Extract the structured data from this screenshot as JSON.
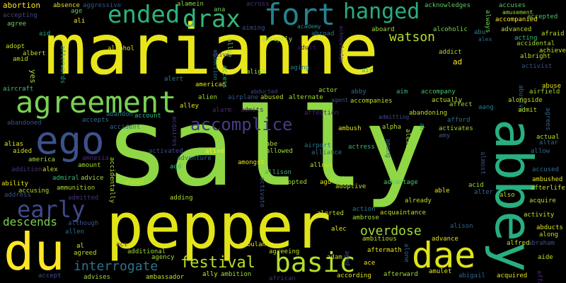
{
  "words": {
    "marianne": {
      "text": "marianne",
      "color": "#e8e61a"
    },
    "sally": {
      "text": "sally",
      "color": "#8fd744"
    },
    "pepper": {
      "text": "pepper",
      "color": "#e2e418"
    },
    "abbey": {
      "text": "abbey",
      "color": "#29af7f"
    },
    "du": {
      "text": "du",
      "color": "#fde725"
    },
    "dae": {
      "text": "dae",
      "color": "#dde318"
    },
    "agreement": {
      "text": "agreement",
      "color": "#7ad151"
    },
    "ego": {
      "text": "ego",
      "color": "#3b528b"
    },
    "ended": {
      "text": "ended",
      "color": "#2db27d"
    },
    "drax": {
      "text": "drax",
      "color": "#35b779"
    },
    "fort": {
      "text": "fort",
      "color": "#26828e"
    },
    "hanged": {
      "text": "hanged",
      "color": "#27ad81"
    },
    "basic": {
      "text": "basic",
      "color": "#b5de2b"
    },
    "early": {
      "text": "early",
      "color": "#3e4a89"
    },
    "accomplice": {
      "text": "accomplice",
      "color": "#433e85"
    },
    "festival": {
      "text": "festival",
      "color": "#b8de29"
    },
    "watson": {
      "text": "watson",
      "color": "#b5de2b"
    },
    "interrogate": {
      "text": "interrogate",
      "color": "#2c728e"
    },
    "overdose": {
      "text": "overdose",
      "color": "#a2da37"
    },
    "descends": {
      "text": "descends",
      "color": "#7ad151"
    },
    "abortion": {
      "text": "abortion",
      "color": "#fde725"
    },
    "accepting": {
      "text": "accepting",
      "color": "#404688"
    },
    "absence": {
      "text": "absence",
      "color": "#e5e419"
    },
    "aggressive": {
      "text": "aggressive",
      "color": "#39568c"
    },
    "alamein": {
      "text": "alamein",
      "color": "#8fd744"
    },
    "ana": {
      "text": "ana",
      "color": "#6ccd5a"
    },
    "across": {
      "text": "across",
      "color": "#46327e"
    },
    "acknowledges": {
      "text": "acknowledges",
      "color": "#5ec962"
    },
    "accuses": {
      "text": "accuses",
      "color": "#54c568"
    },
    "always": {
      "text": "always",
      "color": "#73d056"
    },
    "accepted": {
      "text": "accepted",
      "color": "#4ac16d"
    },
    "agree": {
      "text": "agree",
      "color": "#70cf57"
    },
    "age": {
      "text": "age",
      "color": "#5ec962"
    },
    "amusement": {
      "text": "amusement",
      "color": "#a0da39"
    },
    "ali": {
      "text": "ali",
      "color": "#fde725"
    },
    "aiming": {
      "text": "aiming",
      "color": "#3b528b"
    },
    "academy": {
      "text": "academy",
      "color": "#21918c"
    },
    "accompanied": {
      "text": "accompanied",
      "color": "#fde725"
    },
    "aid": {
      "text": "aid",
      "color": "#20a386"
    },
    "abroad": {
      "text": "abroad",
      "color": "#2a788e"
    },
    "aboard": {
      "text": "aboard",
      "color": "#a0da39"
    },
    "alcoholic": {
      "text": "alcoholic",
      "color": "#7fd34e"
    },
    "abu": {
      "text": "abu",
      "color": "#25858e"
    },
    "advanced": {
      "text": "advanced",
      "color": "#b5de2b"
    },
    "afraid": {
      "text": "afraid",
      "color": "#bddf26"
    },
    "acknowledge": {
      "text": "acknowledge",
      "color": "#46337f"
    },
    "acting": {
      "text": "acting",
      "color": "#37b878"
    },
    "alex_top": {
      "text": "alex",
      "color": "#31688e"
    },
    "accidental": {
      "text": "accidental",
      "color": "#a5db36"
    },
    "adopt": {
      "text": "adopt",
      "color": "#c2df23"
    },
    "allie": {
      "text": "allie",
      "color": "#7ad151"
    },
    "abruptly": {
      "text": "abruptly",
      "color": "#a8db34"
    },
    "adult": {
      "text": "adult",
      "color": "#471063"
    },
    "achieve": {
      "text": "achieve",
      "color": "#c8e020"
    },
    "albert": {
      "text": "albert",
      "color": "#c0df25"
    },
    "alcohol": {
      "text": "alcohol",
      "color": "#e7e419"
    },
    "addict": {
      "text": "addict",
      "color": "#addc30"
    },
    "amid": {
      "text": "amid",
      "color": "#c0df25"
    },
    "afterwards": {
      "text": "afterwards",
      "color": "#1fa088"
    },
    "abduction": {
      "text": "abduction",
      "color": "#2a768e"
    },
    "access": {
      "text": "access",
      "color": "#32b67a"
    },
    "alive_top": {
      "text": "alive",
      "color": "#482878"
    },
    "albright": {
      "text": "albright",
      "color": "#c2df23"
    },
    "ad": {
      "text": "ad",
      "color": "#fde725"
    },
    "align": {
      "text": "align",
      "color": "#a8db34"
    },
    "aging": {
      "text": "aging",
      "color": "#287c8e"
    },
    "air": {
      "text": "air",
      "color": "#38b977"
    },
    "activist": {
      "text": "activist",
      "color": "#3b528b"
    },
    "yes": {
      "text": "yes",
      "color": "#a8db34"
    },
    "alert": {
      "text": "alert",
      "color": "#25848e"
    },
    "american": {
      "text": "american",
      "color": "#e2e418"
    },
    "abuse": {
      "text": "abuse",
      "color": "#e7e419"
    },
    "aircraft": {
      "text": "aircraft",
      "color": "#48c16e"
    },
    "actor": {
      "text": "actor",
      "color": "#a0da39"
    },
    "abby": {
      "text": "abby",
      "color": "#2e6e8e"
    },
    "aim": {
      "text": "aim",
      "color": "#37b878"
    },
    "accompany": {
      "text": "accompany",
      "color": "#4ec36b"
    },
    "abusive": {
      "text": "abusive",
      "color": "#34618d"
    },
    "airfield": {
      "text": "airfield",
      "color": "#a0da39"
    },
    "alien": {
      "text": "alien",
      "color": "#a0da39"
    },
    "airplane": {
      "text": "airplane",
      "color": "#39568c"
    },
    "abducted": {
      "text": "abducted",
      "color": "#3e4989"
    },
    "abused": {
      "text": "abused",
      "color": "#bddf26"
    },
    "alternate": {
      "text": "alternate",
      "color": "#a5db36"
    },
    "agent": {
      "text": "agent",
      "color": "#3b528b"
    },
    "accompanies": {
      "text": "accompanies",
      "color": "#c2df23"
    },
    "actually": {
      "text": "actually",
      "color": "#c0df25"
    },
    "alongside": {
      "text": "alongside",
      "color": "#c2df23"
    },
    "alley": {
      "text": "alley",
      "color": "#e5e419"
    },
    "alarm": {
      "text": "alarm",
      "color": "#472c7a"
    },
    "admits": {
      "text": "admits",
      "color": "#481b6d"
    },
    "affection": {
      "text": "affection",
      "color": "#482475"
    },
    "abandoning": {
      "text": "abandoning",
      "color": "#c2df23"
    },
    "affect": {
      "text": "affect",
      "color": "#a0da39"
    },
    "aang": {
      "text": "aang",
      "color": "#287c8e"
    },
    "admit": {
      "text": "admit",
      "color": "#addc30"
    },
    "abandon": {
      "text": "abandon",
      "color": "#2a788e"
    },
    "account": {
      "text": "account",
      "color": "#38b977"
    },
    "admitting": {
      "text": "admitting",
      "color": "#3e4a89"
    },
    "agrees": {
      "text": "agrees",
      "color": "#33638d"
    },
    "abandoned": {
      "text": "abandoned",
      "color": "#3b528b"
    },
    "accepts": {
      "text": "accepts",
      "color": "#2e6e8e"
    },
    "accident": {
      "text": "accident",
      "color": "#2e6e8e"
    },
    "ambush": {
      "text": "ambush",
      "color": "#e7e419"
    },
    "afford": {
      "text": "afford",
      "color": "#2e6e8e"
    },
    "activates": {
      "text": "activates",
      "color": "#a0da39"
    },
    "amy": {
      "text": "amy",
      "color": "#3b528b"
    },
    "ah": {
      "text": "ah",
      "color": "#21918c"
    },
    "alexander": {
      "text": "alexander",
      "color": "#a0da39"
    },
    "acquires": {
      "text": "acquires",
      "color": "#453882"
    },
    "actual": {
      "text": "actual",
      "color": "#c2df23"
    },
    "altar": {
      "text": "altar",
      "color": "#32658e"
    },
    "allow": {
      "text": "allow",
      "color": "#32658e"
    },
    "alias": {
      "text": "alias",
      "color": "#e5e419"
    },
    "aided": {
      "text": "aided",
      "color": "#c8e020"
    },
    "activated": {
      "text": "activated",
      "color": "#3e4a89"
    },
    "alive": {
      "text": "alive",
      "color": "#fde725"
    },
    "abe": {
      "text": "abe",
      "color": "#a8db34"
    },
    "airport": {
      "text": "airport",
      "color": "#2a768e"
    },
    "allowed": {
      "text": "allowed",
      "color": "#a0da39"
    },
    "alliance": {
      "text": "alliance",
      "color": "#2c728e"
    },
    "actress": {
      "text": "actress",
      "color": "#38b977"
    },
    "among": {
      "text": "among",
      "color": "#31688e"
    },
    "almost": {
      "text": "almost",
      "color": "#3b528b"
    },
    "amnesia": {
      "text": "amnesia",
      "color": "#472d7b"
    },
    "adventure": {
      "text": "adventure",
      "color": "#2e6e8e"
    },
    "alpha": {
      "text": "alpha",
      "color": "#addc30"
    },
    "amount": {
      "text": "amount",
      "color": "#a5db36"
    },
    "add": {
      "text": "add",
      "color": "#38b977"
    },
    "amongst": {
      "text": "amongst",
      "color": "#e7e419"
    },
    "allows": {
      "text": "allows",
      "color": "#c2df23"
    },
    "accidentally": {
      "text": "accidentally",
      "color": "#b5de2b"
    },
    "addition": {
      "text": "addition",
      "color": "#46327e"
    },
    "alex": {
      "text": "alex",
      "color": "#c2df23"
    },
    "allison": {
      "text": "allison",
      "color": "#38b977"
    },
    "accused": {
      "text": "accused",
      "color": "#2e6e8e"
    },
    "america": {
      "text": "america",
      "color": "#a0da39"
    },
    "admiral": {
      "text": "admiral",
      "color": "#38b977"
    },
    "advice": {
      "text": "advice",
      "color": "#a0da39"
    },
    "activate": {
      "text": "activate",
      "color": "#3b528b"
    },
    "ago": {
      "text": "ago",
      "color": "#e7e419"
    },
    "active": {
      "text": "active",
      "color": "#a0da39"
    },
    "adoptive": {
      "text": "adoptive",
      "color": "#c2df23"
    },
    "advantage": {
      "text": "advantage",
      "color": "#4ec36b"
    },
    "acid": {
      "text": "acid",
      "color": "#a0da39"
    },
    "ambushed": {
      "text": "ambushed",
      "color": "#e2e418"
    },
    "ability": {
      "text": "ability",
      "color": "#e7e419"
    },
    "afterlife": {
      "text": "afterlife",
      "color": "#c8e020"
    },
    "ahead": {
      "text": "ahead",
      "color": "#c2df23"
    },
    "adopted": {
      "text": "adopted",
      "color": "#a0da39"
    },
    "able": {
      "text": "able",
      "color": "#e7e419"
    },
    "alter": {
      "text": "alter",
      "color": "#32658e"
    },
    "also": {
      "text": "also",
      "color": "#c2df23"
    },
    "accusing": {
      "text": "accusing",
      "color": "#b5de2b"
    },
    "ammunition": {
      "text": "ammunition",
      "color": "#addc30"
    },
    "address": {
      "text": "address",
      "color": "#3b528b"
    },
    "admitted": {
      "text": "admitted",
      "color": "#46327e"
    },
    "adding": {
      "text": "adding",
      "color": "#addc30"
    },
    "already": {
      "text": "already",
      "color": "#c2df23"
    },
    "acquire": {
      "text": "acquire",
      "color": "#c2df23"
    },
    "alerted": {
      "text": "alerted",
      "color": "#c2df23"
    },
    "activity": {
      "text": "activity",
      "color": "#c8e020"
    },
    "action": {
      "text": "action",
      "color": "#2a788e"
    },
    "acquaintance": {
      "text": "acquaintance",
      "color": "#c2df23"
    },
    "allen": {
      "text": "allen",
      "color": "#2e6e8e"
    },
    "although": {
      "text": "although",
      "color": "#3b528b"
    },
    "ambrose": {
      "text": "ambrose",
      "color": "#a0da39"
    },
    "alison": {
      "text": "alison",
      "color": "#32658e"
    },
    "abducts": {
      "text": "abducts",
      "color": "#e2e418"
    },
    "alec": {
      "text": "alec",
      "color": "#e7e419"
    },
    "along": {
      "text": "along",
      "color": "#c2df23"
    },
    "al": {
      "text": "al",
      "color": "#e7e419"
    },
    "act": {
      "text": "act",
      "color": "#472d7b"
    },
    "ambitious": {
      "text": "ambitious",
      "color": "#c2df23"
    },
    "advance": {
      "text": "advance",
      "color": "#e2e418"
    },
    "abraham": {
      "text": "abraham",
      "color": "#3b528b"
    },
    "agreed": {
      "text": "agreed",
      "color": "#c2df23"
    },
    "ambulance": {
      "text": "ambulance",
      "color": "#e7e419"
    },
    "alfred": {
      "text": "alfred",
      "color": "#c8e020"
    },
    "additional": {
      "text": "additional",
      "color": "#a0da39"
    },
    "agreeing": {
      "text": "agreeing",
      "color": "#c2df23"
    },
    "adam": {
      "text": "adam",
      "color": "#c2df23"
    },
    "aged": {
      "text": "aged",
      "color": "#3b528b"
    },
    "aftermath": {
      "text": "aftermath",
      "color": "#e7e419"
    },
    "alone": {
      "text": "alone",
      "color": "#32658e"
    },
    "agency": {
      "text": "agency",
      "color": "#a0da39"
    },
    "ace": {
      "text": "ace",
      "color": "#e7e419"
    },
    "aide": {
      "text": "aide",
      "color": "#c2df23"
    },
    "ally": {
      "text": "ally",
      "color": "#e2e418"
    },
    "accept": {
      "text": "accept",
      "color": "#3b528b"
    },
    "advises": {
      "text": "advises",
      "color": "#a0da39"
    },
    "ambassador": {
      "text": "ambassador",
      "color": "#c2df23"
    },
    "ambition": {
      "text": "ambition",
      "color": "#a0da39"
    },
    "african": {
      "text": "african",
      "color": "#472d7b"
    },
    "according": {
      "text": "according",
      "color": "#e7e419"
    },
    "afterward": {
      "text": "afterward",
      "color": "#a0da39"
    },
    "amulet": {
      "text": "amulet",
      "color": "#e2e418"
    },
    "abigail": {
      "text": "abigail",
      "color": "#32658e"
    },
    "acquired": {
      "text": "acquired",
      "color": "#e7e419"
    },
    "affair": {
      "text": "affair",
      "color": "#472d7b"
    }
  }
}
